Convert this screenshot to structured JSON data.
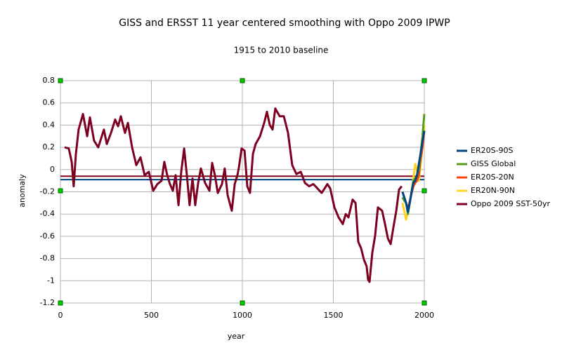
{
  "chart_data": {
    "type": "line",
    "title": "GISS and ERSST 11 year centered smoothing with Oppo 2009 IPWP",
    "subtitle": "1915 to 2010 baseline",
    "x_label": "year",
    "y_label": "anomaly",
    "xlim": [
      0,
      2000
    ],
    "xticks": [
      0,
      500,
      1000,
      1500,
      2000
    ],
    "ylim": [
      -1.2,
      0.8
    ],
    "yticks": [
      0.8,
      0.6,
      0.4,
      0.2,
      0,
      -0.2,
      -0.4,
      -0.6,
      -0.8,
      -1,
      -1.2
    ],
    "grid": true,
    "legend": "right",
    "hlines": [
      {
        "value": -0.06,
        "color": "#7e0021"
      },
      {
        "value": -0.09,
        "color": "#004586"
      }
    ],
    "series": [
      {
        "name": "Oppo 2009 SST-50yr",
        "color": "#7e0021",
        "x": [
          23,
          46,
          62,
          73,
          85,
          100,
          124,
          147,
          162,
          185,
          208,
          239,
          255,
          278,
          301,
          317,
          332,
          355,
          371,
          394,
          417,
          440,
          463,
          486,
          510,
          533,
          556,
          571,
          587,
          602,
          618,
          633,
          649,
          664,
          680,
          695,
          710,
          726,
          741,
          757,
          772,
          795,
          819,
          834,
          849,
          865,
          888,
          903,
          919,
          942,
          958,
          973,
          981,
          996,
          1012,
          1027,
          1042,
          1058,
          1073,
          1097,
          1120,
          1135,
          1151,
          1166,
          1181,
          1205,
          1228,
          1251,
          1274,
          1297,
          1321,
          1344,
          1367,
          1390,
          1413,
          1436,
          1452,
          1467,
          1483,
          1506,
          1529,
          1552,
          1568,
          1583,
          1606,
          1622,
          1637,
          1653,
          1668,
          1683,
          1691,
          1699,
          1714,
          1730,
          1745,
          1768,
          1784,
          1800,
          1815,
          1830,
          1846,
          1861,
          1876
        ],
        "values": [
          0.2,
          0.19,
          0.07,
          -0.15,
          0.14,
          0.36,
          0.5,
          0.3,
          0.47,
          0.26,
          0.2,
          0.36,
          0.23,
          0.33,
          0.45,
          0.39,
          0.48,
          0.33,
          0.42,
          0.2,
          0.04,
          0.11,
          -0.05,
          -0.02,
          -0.19,
          -0.13,
          -0.1,
          0.07,
          -0.05,
          -0.13,
          -0.19,
          -0.05,
          -0.32,
          -0.02,
          0.19,
          -0.05,
          -0.32,
          -0.08,
          -0.32,
          -0.12,
          0.01,
          -0.12,
          -0.19,
          0.06,
          -0.05,
          -0.21,
          -0.13,
          0.01,
          -0.23,
          -0.37,
          -0.13,
          -0.05,
          0.02,
          0.19,
          0.17,
          -0.15,
          -0.21,
          0.14,
          0.23,
          0.3,
          0.42,
          0.52,
          0.4,
          0.36,
          0.55,
          0.48,
          0.48,
          0.33,
          0.04,
          -0.04,
          -0.02,
          -0.12,
          -0.15,
          -0.13,
          -0.17,
          -0.21,
          -0.17,
          -0.13,
          -0.17,
          -0.34,
          -0.43,
          -0.49,
          -0.4,
          -0.43,
          -0.27,
          -0.3,
          -0.65,
          -0.71,
          -0.81,
          -0.87,
          -0.99,
          -1.01,
          -0.75,
          -0.59,
          -0.34,
          -0.37,
          -0.49,
          -0.62,
          -0.67,
          -0.52,
          -0.37,
          -0.18,
          -0.15
        ]
      },
      {
        "name": "ER20N-90N",
        "color": "#ffd320",
        "x": [
          1880,
          1900,
          1915,
          1930,
          1950,
          1960,
          1970,
          1980,
          1990,
          2000
        ],
        "values": [
          -0.3,
          -0.45,
          -0.35,
          -0.2,
          0.05,
          0.0,
          -0.1,
          0.05,
          0.2,
          0.4
        ]
      },
      {
        "name": "ER20S-20N",
        "color": "#ff420e",
        "x": [
          1880,
          1895,
          1910,
          1925,
          1940,
          1950,
          1960,
          1970,
          1980,
          1990,
          2000
        ],
        "values": [
          -0.2,
          -0.28,
          -0.35,
          -0.25,
          -0.15,
          -0.12,
          -0.1,
          -0.05,
          0.1,
          0.2,
          0.35
        ]
      },
      {
        "name": "GISS Global",
        "color": "#579d1c",
        "x": [
          1880,
          1890,
          1900,
          1910,
          1920,
          1930,
          1940,
          1950,
          1960,
          1970,
          1980,
          1990,
          2000
        ],
        "values": [
          -0.25,
          -0.28,
          -0.3,
          -0.4,
          -0.3,
          -0.2,
          -0.1,
          -0.08,
          -0.05,
          0.0,
          0.15,
          0.3,
          0.5
        ]
      },
      {
        "name": "ER20S-90S",
        "color": "#004586",
        "x": [
          1880,
          1890,
          1900,
          1910,
          1920,
          1930,
          1940,
          1950,
          1960,
          1970,
          1980,
          1990,
          2000
        ],
        "values": [
          -0.2,
          -0.25,
          -0.3,
          -0.38,
          -0.3,
          -0.2,
          -0.12,
          -0.1,
          -0.05,
          0.05,
          0.15,
          0.25,
          0.35
        ]
      }
    ]
  }
}
